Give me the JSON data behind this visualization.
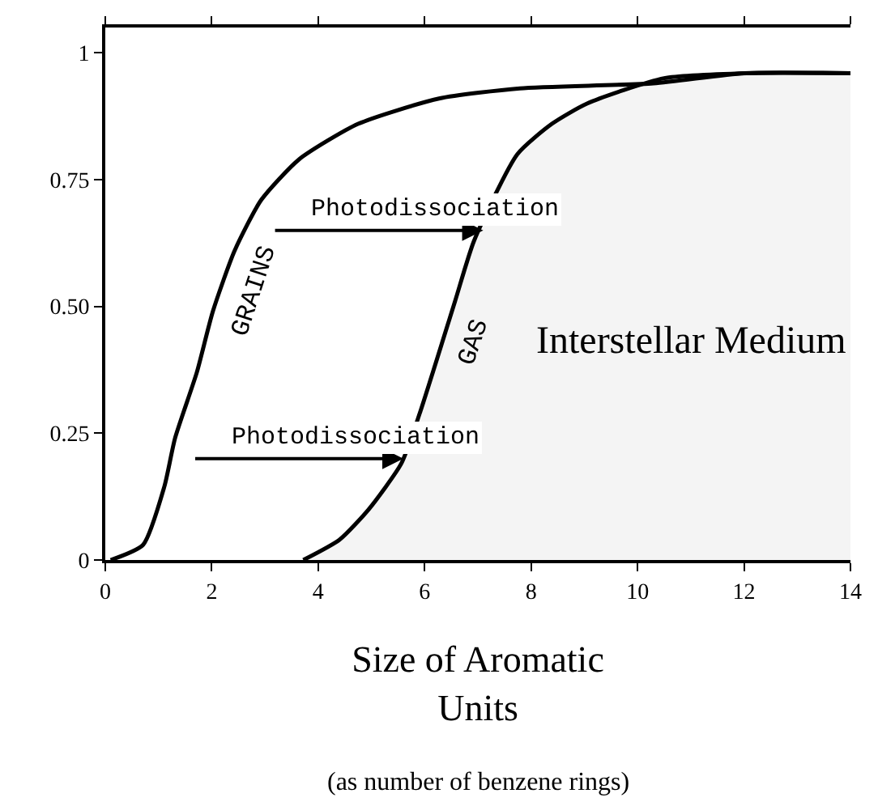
{
  "chart_data": {
    "type": "line",
    "xlabel": "Size of Aromatic Units",
    "xlim": [
      0,
      14
    ],
    "xticks": [
      0,
      2,
      4,
      6,
      8,
      10,
      12,
      14
    ],
    "ylim": [
      0,
      1.05
    ],
    "yticks": [
      0,
      0.25,
      {
        "value": 0.5,
        "label": "0.50"
      },
      0.75,
      1
    ],
    "legend": false,
    "marker": "none",
    "line_style": "solid",
    "series": [
      {
        "name": "GRAINS",
        "color": "#000000",
        "x": [
          0.1,
          0.71,
          1.11,
          1.31,
          1.72,
          2.02,
          2.43,
          2.93,
          3.64,
          4.75,
          6.27,
          7.79,
          10.3,
          12.0,
          14
        ],
        "values": [
          0,
          0.03,
          0.145,
          0.24,
          0.37,
          0.49,
          0.61,
          0.71,
          0.79,
          0.86,
          0.91,
          0.93,
          0.94,
          0.96,
          0.96
        ]
      },
      {
        "name": "GAS",
        "type": "area",
        "color": "#000000",
        "x": [
          3.72,
          4.4,
          4.95,
          5.56,
          5.91,
          6.57,
          6.93,
          7.74,
          8.39,
          9.05,
          10.5,
          12.1,
          14
        ],
        "values": [
          0,
          0.04,
          0.1,
          0.19,
          0.29,
          0.51,
          0.63,
          0.8,
          0.86,
          0.9,
          0.95,
          0.96,
          0.96
        ]
      }
    ],
    "annotations": [
      {
        "text": "Photodissociation",
        "x": 7.1,
        "y": 0.65
      },
      {
        "text": "Photodissociation",
        "x": 5.6,
        "y": 0.2
      },
      "Interstellar Medium",
      "(as number of benzene rings)"
    ]
  }
}
